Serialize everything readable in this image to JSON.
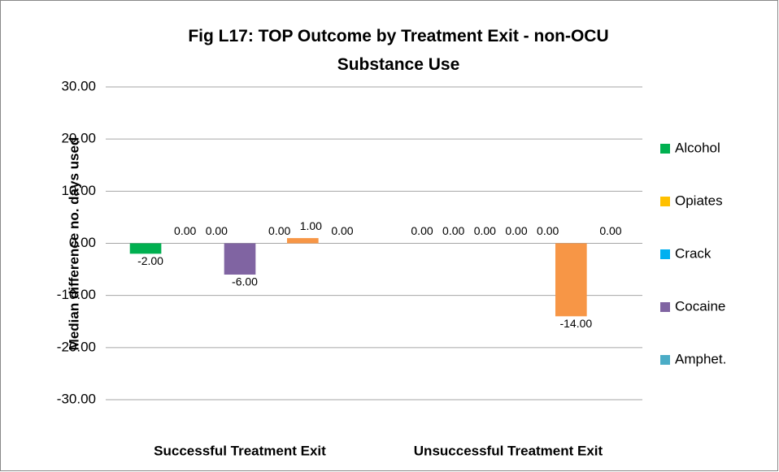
{
  "chart_data": {
    "type": "bar",
    "title": "Fig L17: TOP Outcome by Treatment Exit - non-OCU Substance Use",
    "y_label": "Median difference no. days used",
    "categories": [
      "Successful Treatment Exit",
      "Unsuccessful Treatment Exit"
    ],
    "series": [
      {
        "name": "Alcohol",
        "color": "#00b050",
        "values": [
          -2,
          0
        ],
        "value_labels": [
          "-2.00",
          "0.00"
        ]
      },
      {
        "name": "Opiates",
        "color": "#ffc000",
        "values": [
          0,
          0
        ],
        "value_labels": [
          "0.00",
          "0.00"
        ]
      },
      {
        "name": "Crack",
        "color": "#00b0f0",
        "values": [
          0,
          0
        ],
        "value_labels": [
          "0.00",
          "0.00"
        ]
      },
      {
        "name": "Cocaine",
        "color": "#8064a2",
        "values": [
          -6,
          0
        ],
        "value_labels": [
          "-6.00",
          "0.00"
        ]
      },
      {
        "name": "Amphet.",
        "color": "#4bacc6",
        "values": [
          0,
          0
        ],
        "value_labels": [
          "0.00",
          "0.00"
        ]
      },
      {
        "color": "#f79646",
        "values": [
          1,
          -14
        ],
        "value_labels": [
          "1.00",
          "-14.00"
        ]
      },
      {
        "color": "#9bbb59",
        "values": [
          0,
          0
        ],
        "value_labels": [
          "0.00",
          "0.00"
        ]
      }
    ],
    "ylim": [
      -30,
      30
    ],
    "yticks": [
      {
        "value": 30,
        "label": "30.00"
      },
      {
        "value": 20,
        "label": "20.00"
      },
      {
        "value": 10,
        "label": "10.00"
      },
      {
        "value": 0,
        "label": "0.00"
      },
      {
        "value": -10,
        "label": "-10.00"
      },
      {
        "value": -20,
        "label": "-20.00"
      },
      {
        "value": -30,
        "label": "-30.00"
      }
    ],
    "grid": true,
    "legend": "right"
  }
}
